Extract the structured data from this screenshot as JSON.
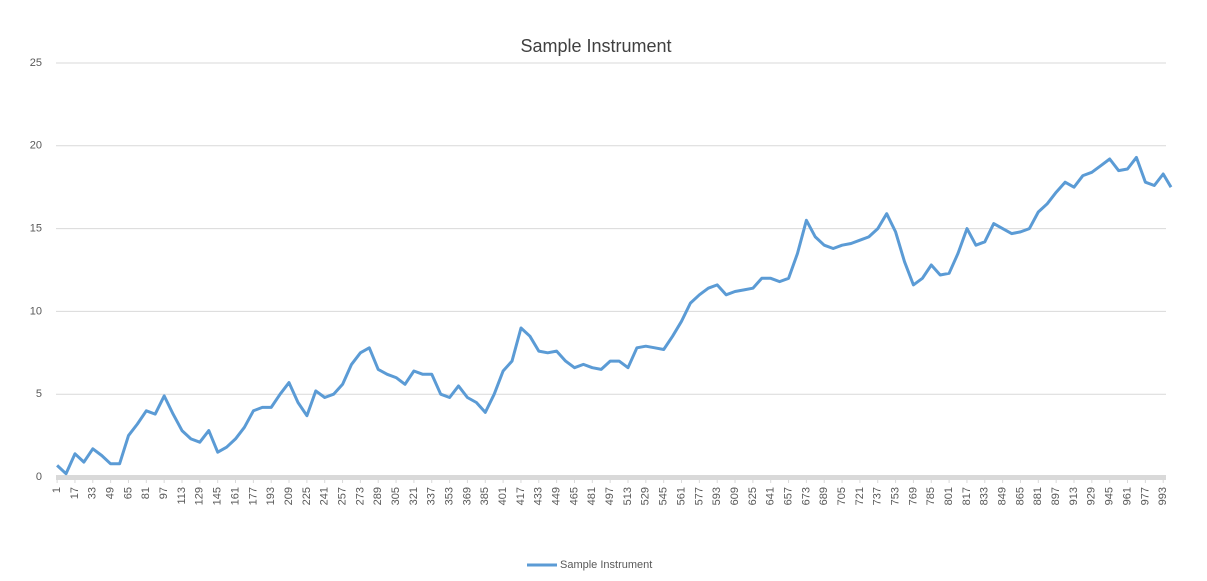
{
  "chart_data": {
    "type": "line",
    "title": "Sample Instrument",
    "x": [
      1,
      9,
      17,
      25,
      33,
      41,
      49,
      57,
      65,
      73,
      81,
      89,
      97,
      105,
      113,
      121,
      129,
      137,
      145,
      153,
      161,
      169,
      177,
      185,
      193,
      201,
      209,
      217,
      225,
      233,
      241,
      249,
      257,
      265,
      273,
      281,
      289,
      297,
      305,
      313,
      321,
      329,
      337,
      345,
      353,
      361,
      369,
      377,
      385,
      393,
      401,
      409,
      417,
      425,
      433,
      441,
      449,
      457,
      465,
      473,
      481,
      489,
      497,
      505,
      513,
      521,
      529,
      537,
      545,
      553,
      561,
      569,
      577,
      585,
      593,
      601,
      609,
      617,
      625,
      633,
      641,
      649,
      657,
      665,
      673,
      681,
      689,
      697,
      705,
      713,
      721,
      729,
      737,
      745,
      753,
      761,
      769,
      777,
      785,
      793,
      801,
      809,
      817,
      825,
      833,
      841,
      849,
      857,
      865,
      873,
      881,
      889,
      897,
      905,
      913,
      921,
      929,
      937,
      945,
      953,
      961,
      969,
      977,
      985,
      993,
      1000
    ],
    "series": [
      {
        "name": "Sample Instrument",
        "color": "#5b9bd5",
        "values": [
          0.7,
          0.2,
          1.4,
          0.9,
          1.7,
          1.3,
          0.8,
          0.8,
          2.5,
          3.2,
          4.0,
          3.8,
          4.9,
          3.8,
          2.8,
          2.3,
          2.1,
          2.8,
          1.5,
          1.8,
          2.3,
          3.0,
          4.0,
          4.2,
          4.2,
          5.0,
          5.7,
          4.5,
          3.7,
          5.2,
          4.8,
          5.0,
          5.6,
          6.8,
          7.5,
          7.8,
          6.5,
          6.2,
          6.0,
          5.6,
          6.4,
          6.2,
          6.2,
          5.0,
          4.8,
          5.5,
          4.8,
          4.5,
          3.9,
          5.0,
          6.4,
          7.0,
          9.0,
          8.5,
          7.6,
          7.5,
          7.6,
          7.0,
          6.6,
          6.8,
          6.6,
          6.5,
          7.0,
          7.0,
          6.6,
          7.8,
          7.9,
          7.8,
          7.7,
          8.5,
          9.4,
          10.5,
          11.0,
          11.4,
          11.6,
          11.0,
          11.2,
          11.3,
          11.4,
          12.0,
          12.0,
          11.8,
          12.0,
          13.5,
          15.5,
          14.5,
          14.0,
          13.8,
          14.0,
          14.1,
          14.3,
          14.5,
          15.0,
          15.9,
          14.8,
          13.0,
          11.6,
          12.0,
          12.8,
          12.2,
          12.3,
          13.5,
          15.0,
          14.0,
          14.2,
          15.3,
          15.0,
          14.7,
          14.8,
          15.0,
          16.0,
          16.5,
          17.2,
          17.8,
          17.5,
          18.2,
          18.4,
          18.8,
          19.2,
          18.5,
          18.6,
          19.3,
          17.8,
          17.6,
          18.3,
          17.5
        ]
      }
    ],
    "xlim": [
      0,
      1000
    ],
    "xticks": [
      1,
      17,
      33,
      49,
      65,
      81,
      97,
      113,
      129,
      145,
      161,
      177,
      193,
      209,
      225,
      241,
      257,
      273,
      289,
      305,
      321,
      337,
      353,
      369,
      385,
      401,
      417,
      433,
      449,
      465,
      481,
      497,
      513,
      529,
      545,
      561,
      577,
      593,
      609,
      625,
      641,
      657,
      673,
      689,
      705,
      721,
      737,
      753,
      769,
      785,
      801,
      817,
      833,
      849,
      865,
      881,
      897,
      913,
      929,
      945,
      961,
      977,
      993
    ],
    "ylim": [
      0,
      25
    ],
    "yticks": [
      0,
      5,
      10,
      15,
      20,
      25
    ],
    "grid": true,
    "legend": "bottom"
  }
}
